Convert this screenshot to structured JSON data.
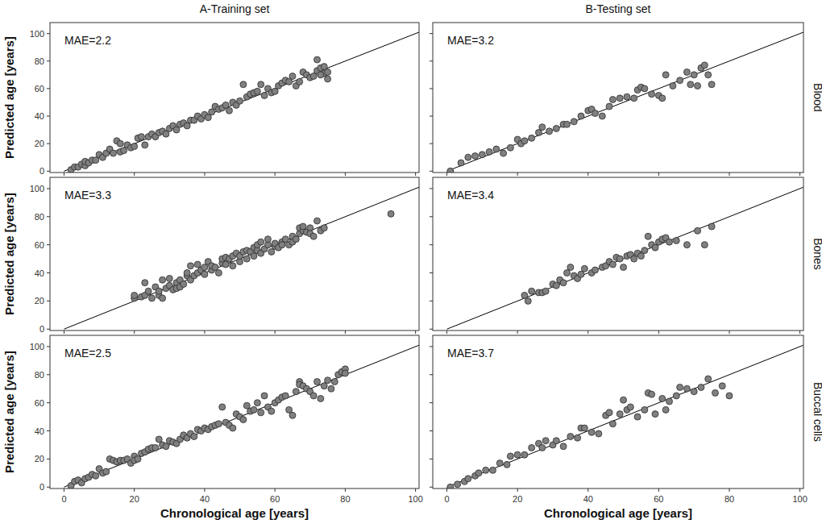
{
  "chart_data": [
    {
      "type": "scatter",
      "title": "A-Training set",
      "ylabel": "Predicted age [years]",
      "annotations": [
        "MAE=2.2"
      ],
      "xlim": [
        -4,
        101
      ],
      "ylim": [
        -1,
        108
      ],
      "xticks": [
        0,
        20,
        40,
        60,
        80,
        100
      ],
      "yticks": [
        0,
        20,
        40,
        60,
        80,
        100
      ],
      "tick_labels": "y",
      "series": [
        {
          "type": "scatter",
          "color": "#808080",
          "marker": "circle",
          "x": [
            2,
            3,
            4,
            5,
            6,
            6,
            7,
            8,
            9,
            10,
            11,
            12,
            13,
            14,
            15,
            16,
            16,
            17,
            18,
            19,
            20,
            21,
            22,
            23,
            24,
            25,
            26,
            27,
            28,
            29,
            30,
            31,
            32,
            33,
            34,
            35,
            36,
            37,
            38,
            39,
            40,
            41,
            42,
            43,
            44,
            45,
            46,
            47,
            48,
            49,
            50,
            51,
            52,
            53,
            54,
            55,
            56,
            57,
            58,
            59,
            60,
            61,
            62,
            63,
            64,
            65,
            66,
            67,
            68,
            69,
            70,
            71,
            72,
            72,
            73,
            74,
            74,
            75,
            75,
            73
          ],
          "values": [
            1,
            3,
            3,
            5,
            4,
            7,
            6,
            8,
            8,
            12,
            10,
            13,
            16,
            13,
            22,
            14,
            20,
            15,
            19,
            17,
            18,
            24,
            25,
            19,
            25,
            27,
            25,
            28,
            29,
            27,
            31,
            33,
            30,
            34,
            35,
            33,
            37,
            37,
            40,
            38,
            41,
            39,
            43,
            47,
            45,
            46,
            48,
            44,
            50,
            48,
            51,
            63,
            54,
            56,
            57,
            58,
            63,
            55,
            60,
            57,
            58,
            62,
            64,
            66,
            65,
            69,
            62,
            65,
            72,
            70,
            68,
            69,
            81,
            73,
            75,
            71,
            76,
            67,
            72,
            70
          ]
        },
        {
          "type": "line",
          "color": "#000000",
          "line_style": "solid",
          "x": [
            0,
            101
          ],
          "values": [
            0,
            101
          ]
        }
      ]
    },
    {
      "type": "scatter",
      "title": "B-Testing set",
      "subtitle": "Blood",
      "annotations": [
        "MAE=3.2"
      ],
      "xlim": [
        -4,
        101
      ],
      "ylim": [
        -1,
        108
      ],
      "xticks": [
        0,
        20,
        40,
        60,
        80,
        100
      ],
      "yticks": [
        0,
        20,
        40,
        60,
        80,
        100
      ],
      "tick_labels": false,
      "series": [
        {
          "type": "scatter",
          "color": "#808080",
          "marker": "circle",
          "x": [
            1,
            4,
            6,
            8,
            10,
            12,
            14,
            16,
            18,
            20,
            21,
            22,
            24,
            26,
            27,
            29,
            31,
            33,
            34,
            36,
            38,
            40,
            41,
            42,
            44,
            46,
            47,
            49,
            51,
            53,
            54,
            55,
            56,
            58,
            60,
            61,
            62,
            64,
            66,
            68,
            69,
            70,
            71,
            72,
            73,
            74,
            75
          ],
          "values": [
            0,
            6,
            10,
            11,
            12,
            14,
            16,
            13,
            17,
            23,
            20,
            22,
            24,
            28,
            32,
            29,
            31,
            34,
            34,
            36,
            40,
            44,
            45,
            42,
            40,
            47,
            52,
            53,
            54,
            53,
            59,
            61,
            60,
            56,
            55,
            53,
            70,
            62,
            66,
            72,
            63,
            70,
            62,
            75,
            77,
            70,
            63
          ]
        },
        {
          "type": "line",
          "color": "#000000",
          "line_style": "solid",
          "x": [
            0,
            101
          ],
          "values": [
            0,
            101
          ]
        }
      ]
    },
    {
      "type": "scatter",
      "ylabel": "Predicted age [years]",
      "annotations": [
        "MAE=3.3"
      ],
      "xlim": [
        -4,
        101
      ],
      "ylim": [
        -1,
        108
      ],
      "xticks": [
        0,
        20,
        40,
        60,
        80,
        100
      ],
      "yticks": [
        0,
        20,
        40,
        60,
        80,
        100
      ],
      "tick_labels": "y",
      "series": [
        {
          "type": "scatter",
          "color": "#808080",
          "marker": "circle",
          "x": [
            20,
            20,
            22,
            23,
            23,
            24,
            25,
            26,
            27,
            27,
            28,
            28,
            29,
            30,
            30,
            31,
            32,
            32,
            33,
            33,
            34,
            35,
            35,
            36,
            36,
            37,
            38,
            38,
            39,
            40,
            40,
            41,
            42,
            42,
            43,
            44,
            45,
            45,
            46,
            46,
            47,
            48,
            48,
            49,
            50,
            50,
            51,
            52,
            52,
            53,
            54,
            54,
            55,
            55,
            56,
            56,
            57,
            58,
            58,
            59,
            60,
            60,
            61,
            62,
            62,
            63,
            64,
            65,
            65,
            66,
            67,
            67,
            68,
            68,
            69,
            70,
            70,
            71,
            72,
            73,
            74,
            93
          ],
          "values": [
            22,
            24,
            23,
            24,
            33,
            27,
            22,
            30,
            24,
            27,
            22,
            35,
            29,
            31,
            36,
            28,
            33,
            29,
            30,
            35,
            32,
            38,
            40,
            35,
            45,
            38,
            40,
            46,
            42,
            39,
            44,
            48,
            42,
            45,
            44,
            40,
            47,
            50,
            46,
            51,
            50,
            45,
            52,
            54,
            48,
            52,
            55,
            50,
            56,
            55,
            58,
            52,
            56,
            60,
            54,
            62,
            57,
            60,
            64,
            55,
            59,
            61,
            58,
            62,
            60,
            64,
            60,
            62,
            66,
            64,
            68,
            72,
            70,
            73,
            69,
            72,
            68,
            66,
            77,
            70,
            72,
            82
          ]
        },
        {
          "type": "line",
          "color": "#000000",
          "line_style": "solid",
          "x": [
            0,
            101
          ],
          "values": [
            0,
            101
          ]
        }
      ]
    },
    {
      "type": "scatter",
      "subtitle": "Bones",
      "annotations": [
        "MAE=3.4"
      ],
      "xlim": [
        -4,
        101
      ],
      "ylim": [
        -1,
        108
      ],
      "xticks": [
        0,
        20,
        40,
        60,
        80,
        100
      ],
      "yticks": [
        0,
        20,
        40,
        60,
        80,
        100
      ],
      "tick_labels": false,
      "series": [
        {
          "type": "scatter",
          "color": "#808080",
          "marker": "circle",
          "x": [
            22,
            23,
            24,
            26,
            27,
            28,
            30,
            31,
            32,
            33,
            34,
            35,
            36,
            37,
            38,
            39,
            41,
            42,
            44,
            45,
            46,
            47,
            48,
            49,
            50,
            51,
            52,
            53,
            54,
            55,
            56,
            57,
            58,
            59,
            60,
            61,
            62,
            63,
            65,
            68,
            71,
            73,
            75
          ],
          "values": [
            24,
            20,
            27,
            26,
            26,
            27,
            32,
            31,
            35,
            33,
            40,
            44,
            38,
            36,
            39,
            43,
            40,
            42,
            44,
            45,
            48,
            46,
            51,
            50,
            44,
            52,
            53,
            50,
            54,
            52,
            56,
            66,
            60,
            58,
            62,
            64,
            65,
            62,
            63,
            60,
            70,
            60,
            73
          ]
        },
        {
          "type": "line",
          "color": "#000000",
          "line_style": "solid",
          "x": [
            0,
            101
          ],
          "values": [
            0,
            101
          ]
        }
      ]
    },
    {
      "type": "scatter",
      "ylabel": "Predicted age [years]",
      "xlabel": "Chronological age [years]",
      "annotations": [
        "MAE=2.5"
      ],
      "xlim": [
        -4,
        101
      ],
      "ylim": [
        -1,
        108
      ],
      "xticks": [
        0,
        20,
        40,
        60,
        80,
        100
      ],
      "yticks": [
        0,
        20,
        40,
        60,
        80,
        100
      ],
      "tick_labels": true,
      "series": [
        {
          "type": "scatter",
          "color": "#808080",
          "marker": "circle",
          "x": [
            2,
            3,
            4,
            5,
            6,
            7,
            8,
            9,
            10,
            11,
            12,
            13,
            14,
            15,
            16,
            17,
            18,
            19,
            20,
            20,
            21,
            22,
            23,
            24,
            25,
            26,
            27,
            28,
            29,
            30,
            31,
            32,
            33,
            34,
            35,
            36,
            37,
            38,
            39,
            40,
            41,
            42,
            43,
            44,
            45,
            46,
            47,
            48,
            49,
            50,
            51,
            52,
            53,
            54,
            55,
            56,
            57,
            58,
            59,
            60,
            61,
            62,
            63,
            64,
            65,
            66,
            67,
            67,
            68,
            69,
            70,
            71,
            72,
            73,
            74,
            75,
            76,
            77,
            78,
            79,
            80,
            80
          ],
          "values": [
            1,
            4,
            5,
            3,
            6,
            7,
            9,
            8,
            13,
            10,
            11,
            20,
            19,
            18,
            19,
            19,
            20,
            17,
            22,
            19,
            20,
            24,
            25,
            27,
            28,
            28,
            34,
            30,
            29,
            33,
            32,
            31,
            34,
            37,
            35,
            38,
            36,
            41,
            40,
            42,
            41,
            43,
            44,
            45,
            57,
            46,
            44,
            42,
            52,
            50,
            48,
            58,
            54,
            55,
            60,
            53,
            65,
            57,
            54,
            60,
            62,
            64,
            65,
            55,
            51,
            68,
            75,
            73,
            72,
            70,
            68,
            65,
            75,
            63,
            72,
            76,
            70,
            75,
            80,
            82,
            84,
            81
          ]
        },
        {
          "type": "line",
          "color": "#000000",
          "line_style": "solid",
          "x": [
            0,
            101
          ],
          "values": [
            0,
            101
          ]
        }
      ]
    },
    {
      "type": "scatter",
      "subtitle": "Buccal cells",
      "xlabel": "Chronological age [years]",
      "annotations": [
        "MAE=3.7"
      ],
      "xlim": [
        -4,
        101
      ],
      "ylim": [
        -1,
        108
      ],
      "xticks": [
        0,
        20,
        40,
        60,
        80,
        100
      ],
      "yticks": [
        0,
        20,
        40,
        60,
        80,
        100
      ],
      "tick_labels": "x",
      "series": [
        {
          "type": "scatter",
          "color": "#808080",
          "marker": "circle",
          "x": [
            1,
            3,
            5,
            6,
            8,
            9,
            11,
            13,
            15,
            17,
            18,
            20,
            22,
            24,
            26,
            27,
            28,
            30,
            31,
            33,
            35,
            37,
            38,
            39,
            41,
            43,
            45,
            46,
            47,
            49,
            50,
            51,
            52,
            54,
            56,
            57,
            58,
            59,
            61,
            62,
            63,
            65,
            66,
            68,
            70,
            72,
            74,
            76,
            78,
            80
          ],
          "values": [
            0,
            2,
            4,
            6,
            8,
            10,
            12,
            12,
            17,
            16,
            22,
            23,
            23,
            28,
            31,
            28,
            33,
            30,
            33,
            29,
            36,
            35,
            42,
            42,
            39,
            38,
            51,
            53,
            45,
            52,
            62,
            55,
            57,
            50,
            55,
            67,
            66,
            52,
            63,
            55,
            61,
            65,
            71,
            70,
            68,
            71,
            77,
            67,
            72,
            65
          ]
        },
        {
          "type": "line",
          "color": "#000000",
          "line_style": "solid",
          "x": [
            0,
            101
          ],
          "values": [
            0,
            101
          ]
        }
      ]
    }
  ]
}
